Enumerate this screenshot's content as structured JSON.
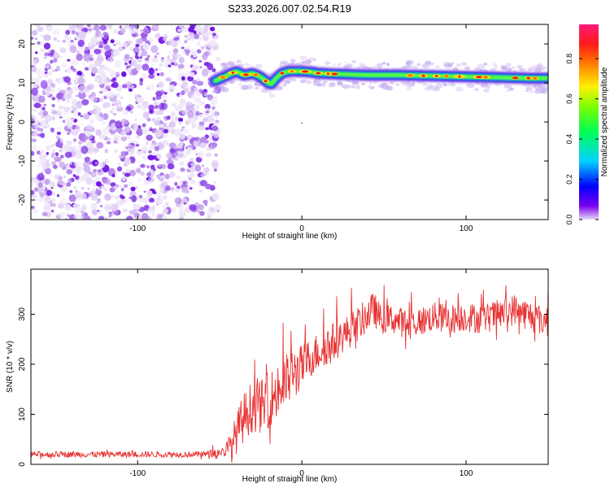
{
  "title": "S233.2026.007.02.54.R19",
  "chart_data": [
    {
      "type": "heatmap",
      "title": "S233.2026.007.02.54.R19",
      "xlabel": "Height of straight line (km)",
      "ylabel": "Frequency (Hz)",
      "xlim": [
        -165,
        150
      ],
      "ylim": [
        -25,
        25
      ],
      "xticks": [
        -100,
        0,
        100
      ],
      "yticks": [
        -20,
        -10,
        0,
        10,
        20
      ],
      "noise_region_x": [
        -165,
        -53
      ],
      "signal_region_x": [
        -53,
        150
      ],
      "signal_ridge": {
        "x": [
          -53,
          -45,
          -40,
          -35,
          -30,
          -25,
          -22,
          -19,
          -17,
          -15,
          -12,
          -8,
          -4,
          0,
          5,
          10,
          20,
          40,
          60,
          80,
          100,
          120,
          140,
          150
        ],
        "freq": [
          10.5,
          12,
          13,
          12,
          12.5,
          11.5,
          10.5,
          9.5,
          10.5,
          11.5,
          12.5,
          13,
          13,
          13,
          12.8,
          12.5,
          12.3,
          12,
          12,
          11.8,
          11.6,
          11.4,
          11.2,
          11.2
        ]
      },
      "colorbar": {
        "label": "Normalized spectral amplitude",
        "ticks": [
          0,
          0.2,
          0.4,
          0.6,
          0.8
        ],
        "range": [
          0,
          0.97
        ]
      }
    },
    {
      "type": "line",
      "xlabel": "Height of straight line (km)",
      "ylabel": "SNR (10 * v/v)",
      "xlim": [
        -165,
        150
      ],
      "ylim": [
        0,
        390
      ],
      "xticks": [
        -100,
        0,
        100
      ],
      "yticks": [
        0,
        100,
        200,
        300
      ],
      "color": "#e83232",
      "series": [
        {
          "name": "SNR",
          "x": [
            -165,
            -140,
            -120,
            -100,
            -80,
            -60,
            -48,
            -44,
            -40,
            -36,
            -32,
            -28,
            -24,
            -20,
            -16,
            -12,
            -8,
            -4,
            0,
            4,
            8,
            12,
            16,
            20,
            24,
            28,
            32,
            36,
            40,
            44,
            48,
            56,
            64,
            72,
            80,
            90,
            100,
            110,
            120,
            130,
            140,
            150
          ],
          "y": [
            20,
            20,
            20,
            20,
            20,
            20,
            25,
            35,
            60,
            90,
            110,
            120,
            115,
            130,
            140,
            155,
            170,
            185,
            195,
            210,
            220,
            230,
            240,
            245,
            255,
            265,
            275,
            285,
            300,
            310,
            290,
            290,
            280,
            285,
            295,
            290,
            295,
            290,
            300,
            310,
            295,
            285
          ],
          "noise_amplitude": [
            6,
            6,
            6,
            6,
            6,
            6,
            10,
            25,
            40,
            50,
            50,
            55,
            55,
            55,
            60,
            60,
            55,
            50,
            45,
            40,
            40,
            40,
            40,
            40,
            35,
            35,
            35,
            35,
            35,
            35,
            30,
            30,
            30,
            30,
            30,
            30,
            30,
            30,
            30,
            32,
            32,
            32
          ]
        }
      ]
    }
  ]
}
